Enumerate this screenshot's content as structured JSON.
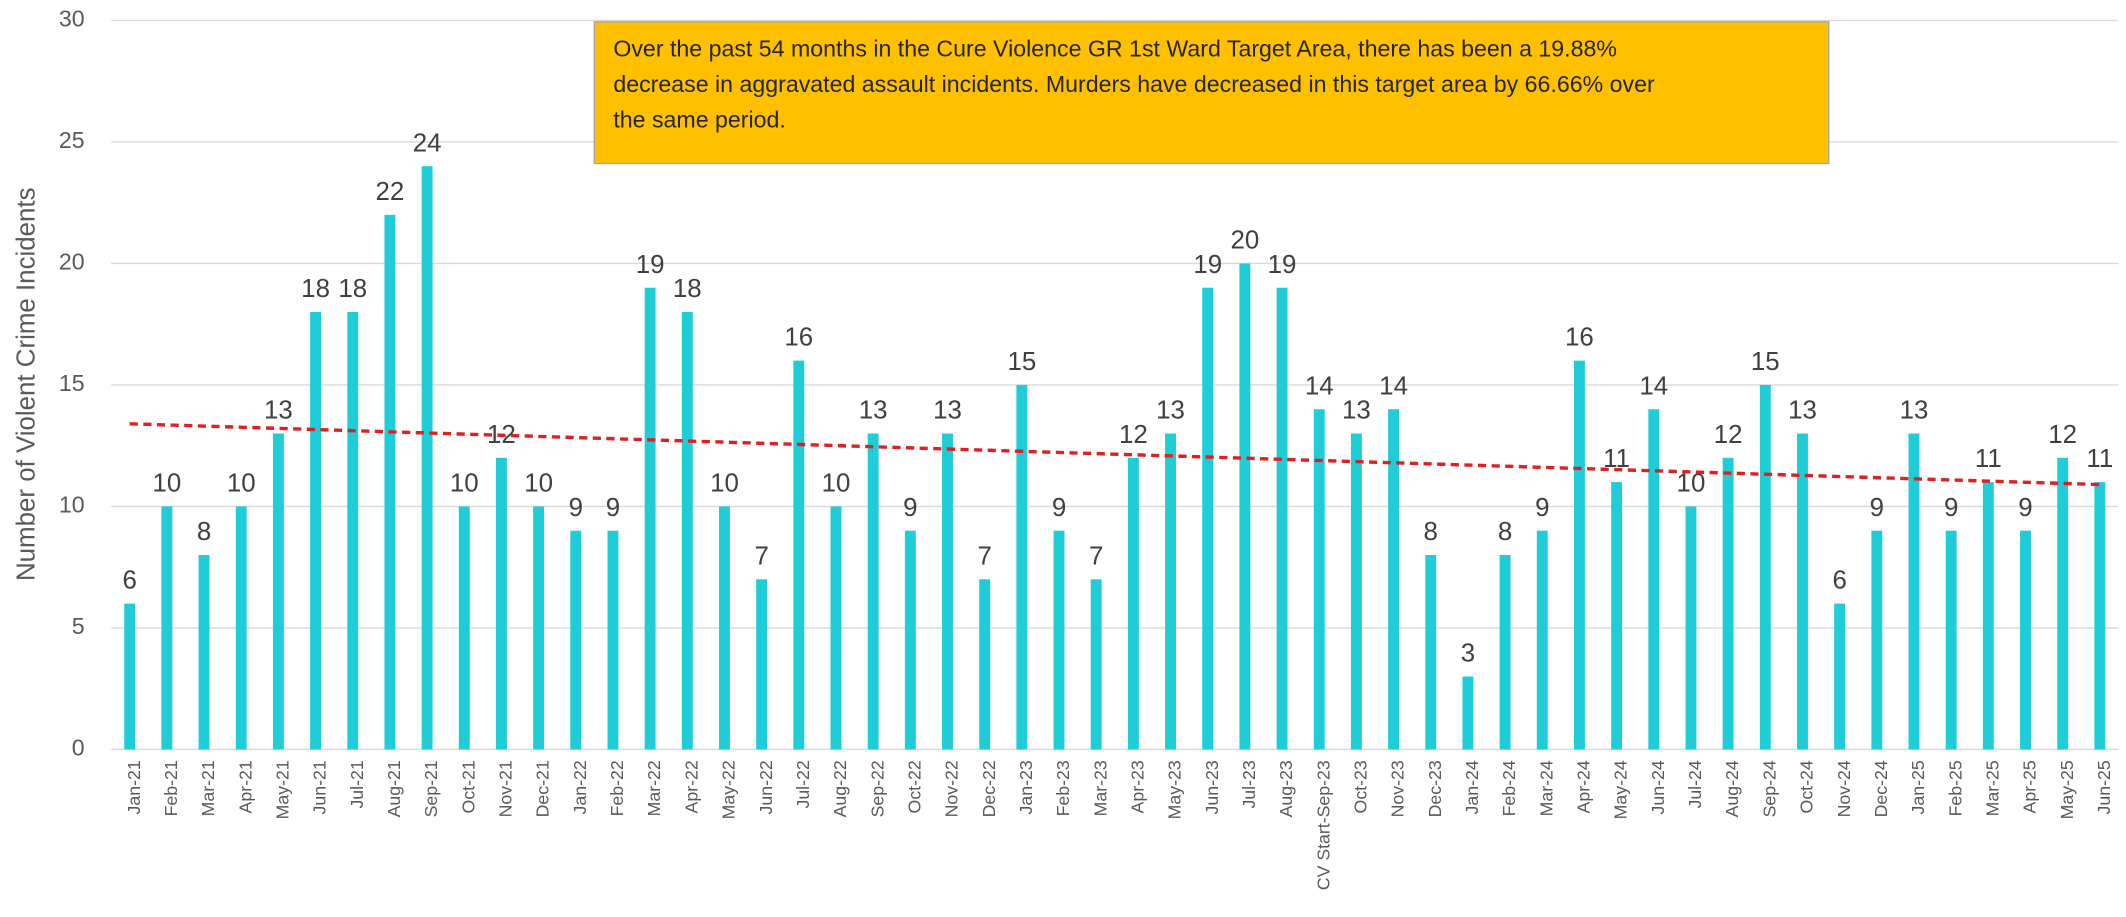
{
  "chart_data": {
    "type": "bar",
    "y_label": "Number of Violent Crime Incidents",
    "annotation": [
      "Over the past 54 months in the Cure Violence GR 1st Ward Target Area, there has been a 19.88%",
      "decrease in aggravated assault incidents.  Murders have decreased in this target area by 66.66% over",
      "the same period."
    ],
    "categories": [
      "Jan-21",
      "Feb-21",
      "Mar-21",
      "Apr-21",
      "May-21",
      "Jun-21",
      "Jul-21",
      "Aug-21",
      "Sep-21",
      "Oct-21",
      "Nov-21",
      "Dec-21",
      "Jan-22",
      "Feb-22",
      "Mar-22",
      "Apr-22",
      "May-22",
      "Jun-22",
      "Jul-22",
      "Aug-22",
      "Sep-22",
      "Oct-22",
      "Nov-22",
      "Dec-22",
      "Jan-23",
      "Feb-23",
      "Mar-23",
      "Apr-23",
      "May-23",
      "Jun-23",
      "Jul-23",
      "Aug-23",
      "CV Start-Sep-23",
      "Oct-23",
      "Nov-23",
      "Dec-23",
      "Jan-24",
      "Feb-24",
      "Mar-24",
      "Apr-24",
      "May-24",
      "Jun-24",
      "Jul-24",
      "Aug-24",
      "Sep-24",
      "Oct-24",
      "Nov-24",
      "Dec-24",
      "Jan-25",
      "Feb-25",
      "Mar-25",
      "Apr-25",
      "May-25",
      "Jun-25"
    ],
    "values": [
      6,
      10,
      8,
      10,
      13,
      18,
      18,
      22,
      24,
      10,
      12,
      10,
      9,
      9,
      19,
      18,
      10,
      7,
      16,
      10,
      13,
      9,
      13,
      7,
      15,
      9,
      7,
      12,
      13,
      19,
      20,
      19,
      14,
      13,
      14,
      8,
      3,
      8,
      9,
      16,
      11,
      14,
      10,
      12,
      15,
      13,
      6,
      9,
      13,
      9,
      11,
      9,
      12,
      11
    ],
    "color": "#1fcdd8",
    "trendline": {
      "color": "#e02020",
      "values": [
        13.4,
        10.9
      ]
    },
    "ylim": [
      0,
      30
    ],
    "yticks": [
      0,
      5,
      10,
      15,
      20,
      25,
      30
    ],
    "grid": true
  }
}
